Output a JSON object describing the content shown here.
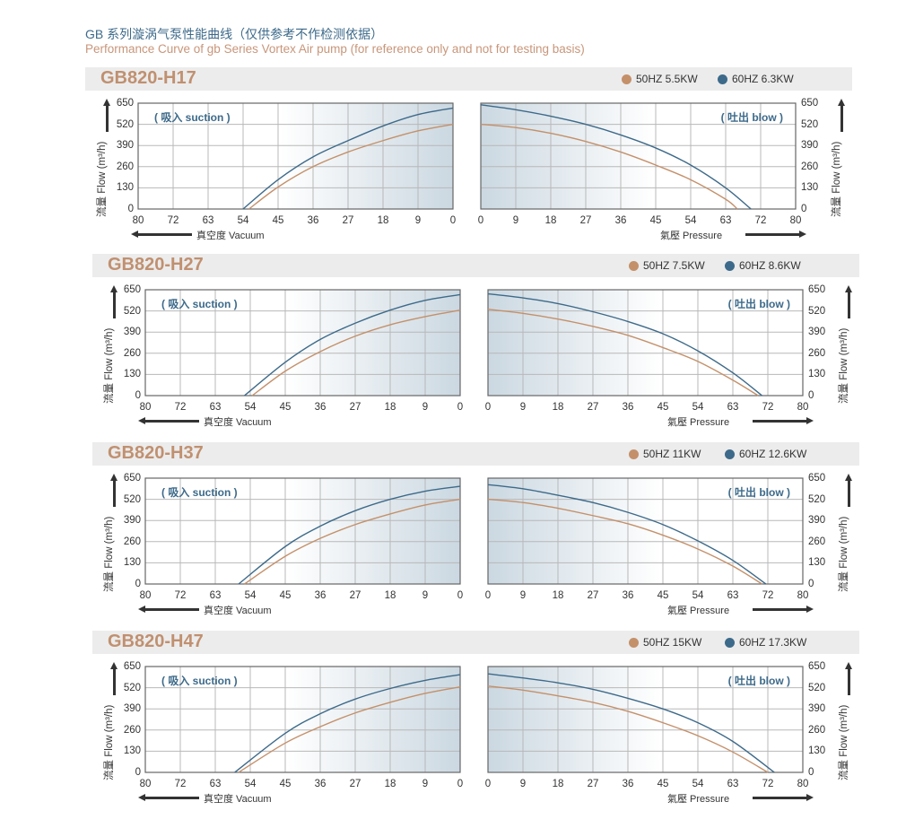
{
  "title_cn": "GB 系列漩涡气泵性能曲线（仅供参考不作检测依据）",
  "title_en": "Performance Curve of gb Series Vortex Air pump (for reference only and not for testing basis)",
  "colors": {
    "hz50": "#c4906a",
    "hz60": "#3d6a8a"
  },
  "labels": {
    "suction": "( 吸入 suction )",
    "blow": "( 吐出 blow )",
    "y_axis": "流量 Flow (m³/h)",
    "vacuum": "真空度  Vacuum",
    "pressure": "氣壓  Pressure"
  },
  "chart_data": [
    {
      "type": "line",
      "title": "GB820-H17",
      "legend": [
        "50HZ  5.5KW",
        "60HZ  6.3KW"
      ],
      "xticks": [
        0,
        9,
        18,
        27,
        36,
        45,
        54,
        63,
        72,
        80
      ],
      "yticks": [
        0,
        130,
        260,
        390,
        520,
        650
      ],
      "ylim": [
        0,
        650
      ],
      "xlim": [
        0,
        80
      ],
      "suction": {
        "hz60": [
          [
            0,
            620
          ],
          [
            9,
            580
          ],
          [
            18,
            510
          ],
          [
            27,
            420
          ],
          [
            36,
            320
          ],
          [
            45,
            180
          ],
          [
            54,
            0
          ]
        ],
        "hz50": [
          [
            0,
            520
          ],
          [
            9,
            480
          ],
          [
            18,
            420
          ],
          [
            27,
            350
          ],
          [
            36,
            260
          ],
          [
            45,
            135
          ],
          [
            52.5,
            0
          ]
        ]
      },
      "blow": {
        "hz60": [
          [
            0,
            640
          ],
          [
            9,
            610
          ],
          [
            18,
            570
          ],
          [
            27,
            520
          ],
          [
            36,
            455
          ],
          [
            45,
            375
          ],
          [
            54,
            270
          ],
          [
            63,
            130
          ],
          [
            69.5,
            0
          ]
        ],
        "hz50": [
          [
            0,
            520
          ],
          [
            9,
            500
          ],
          [
            18,
            465
          ],
          [
            27,
            415
          ],
          [
            36,
            350
          ],
          [
            45,
            270
          ],
          [
            54,
            180
          ],
          [
            63,
            60
          ],
          [
            66,
            0
          ]
        ]
      }
    },
    {
      "type": "line",
      "title": "GB820-H27",
      "legend": [
        "50HZ  7.5KW",
        "60HZ  8.6KW"
      ],
      "xticks": [
        0,
        9,
        18,
        27,
        36,
        45,
        54,
        63,
        72,
        80
      ],
      "yticks": [
        0,
        130,
        260,
        390,
        520,
        650
      ],
      "ylim": [
        0,
        650
      ],
      "xlim": [
        0,
        80
      ],
      "suction": {
        "hz60": [
          [
            0,
            620
          ],
          [
            9,
            585
          ],
          [
            18,
            525
          ],
          [
            27,
            445
          ],
          [
            36,
            345
          ],
          [
            45,
            205
          ],
          [
            55.5,
            0
          ]
        ],
        "hz50": [
          [
            0,
            525
          ],
          [
            9,
            485
          ],
          [
            18,
            435
          ],
          [
            27,
            365
          ],
          [
            36,
            270
          ],
          [
            45,
            150
          ],
          [
            53.5,
            0
          ]
        ]
      },
      "blow": {
        "hz60": [
          [
            0,
            625
          ],
          [
            9,
            600
          ],
          [
            18,
            565
          ],
          [
            27,
            515
          ],
          [
            36,
            455
          ],
          [
            45,
            380
          ],
          [
            54,
            275
          ],
          [
            63,
            140
          ],
          [
            70.5,
            0
          ]
        ],
        "hz50": [
          [
            0,
            530
          ],
          [
            9,
            505
          ],
          [
            18,
            470
          ],
          [
            27,
            425
          ],
          [
            36,
            370
          ],
          [
            45,
            295
          ],
          [
            54,
            210
          ],
          [
            63,
            95
          ],
          [
            69.5,
            0
          ]
        ]
      }
    },
    {
      "type": "line",
      "title": "GB820-H37",
      "legend": [
        "50HZ  11KW",
        "60HZ  12.6KW"
      ],
      "xticks": [
        0,
        9,
        18,
        27,
        36,
        45,
        54,
        63,
        72,
        80
      ],
      "yticks": [
        0,
        130,
        260,
        390,
        520,
        650
      ],
      "ylim": [
        0,
        650
      ],
      "xlim": [
        0,
        80
      ],
      "suction": {
        "hz60": [
          [
            0,
            600
          ],
          [
            9,
            570
          ],
          [
            18,
            520
          ],
          [
            27,
            450
          ],
          [
            36,
            355
          ],
          [
            45,
            230
          ],
          [
            57,
            0
          ]
        ],
        "hz50": [
          [
            0,
            520
          ],
          [
            9,
            485
          ],
          [
            18,
            430
          ],
          [
            27,
            365
          ],
          [
            36,
            280
          ],
          [
            45,
            170
          ],
          [
            55.5,
            0
          ]
        ]
      },
      "blow": {
        "hz60": [
          [
            0,
            610
          ],
          [
            9,
            585
          ],
          [
            18,
            545
          ],
          [
            27,
            500
          ],
          [
            36,
            440
          ],
          [
            45,
            365
          ],
          [
            54,
            265
          ],
          [
            63,
            145
          ],
          [
            71.5,
            0
          ]
        ],
        "hz50": [
          [
            0,
            520
          ],
          [
            9,
            500
          ],
          [
            18,
            465
          ],
          [
            27,
            420
          ],
          [
            36,
            370
          ],
          [
            45,
            300
          ],
          [
            54,
            215
          ],
          [
            63,
            110
          ],
          [
            70.5,
            0
          ]
        ]
      }
    },
    {
      "type": "line",
      "title": "GB820-H47",
      "legend": [
        "50HZ  15KW",
        "60HZ  17.3KW"
      ],
      "xticks": [
        0,
        9,
        18,
        27,
        36,
        45,
        54,
        63,
        72,
        80
      ],
      "yticks": [
        0,
        130,
        260,
        390,
        520,
        650
      ],
      "ylim": [
        0,
        650
      ],
      "xlim": [
        0,
        80
      ],
      "suction": {
        "hz60": [
          [
            0,
            600
          ],
          [
            9,
            565
          ],
          [
            18,
            515
          ],
          [
            27,
            450
          ],
          [
            36,
            360
          ],
          [
            45,
            240
          ],
          [
            58,
            0
          ]
        ],
        "hz50": [
          [
            0,
            525
          ],
          [
            9,
            485
          ],
          [
            18,
            430
          ],
          [
            27,
            365
          ],
          [
            36,
            280
          ],
          [
            45,
            180
          ],
          [
            57,
            0
          ]
        ]
      },
      "blow": {
        "hz60": [
          [
            0,
            605
          ],
          [
            9,
            580
          ],
          [
            18,
            550
          ],
          [
            27,
            510
          ],
          [
            36,
            455
          ],
          [
            45,
            390
          ],
          [
            54,
            305
          ],
          [
            63,
            190
          ],
          [
            73.5,
            0
          ]
        ],
        "hz50": [
          [
            0,
            530
          ],
          [
            9,
            505
          ],
          [
            18,
            470
          ],
          [
            27,
            430
          ],
          [
            36,
            375
          ],
          [
            45,
            305
          ],
          [
            54,
            225
          ],
          [
            63,
            125
          ],
          [
            72,
            0
          ]
        ]
      }
    }
  ]
}
